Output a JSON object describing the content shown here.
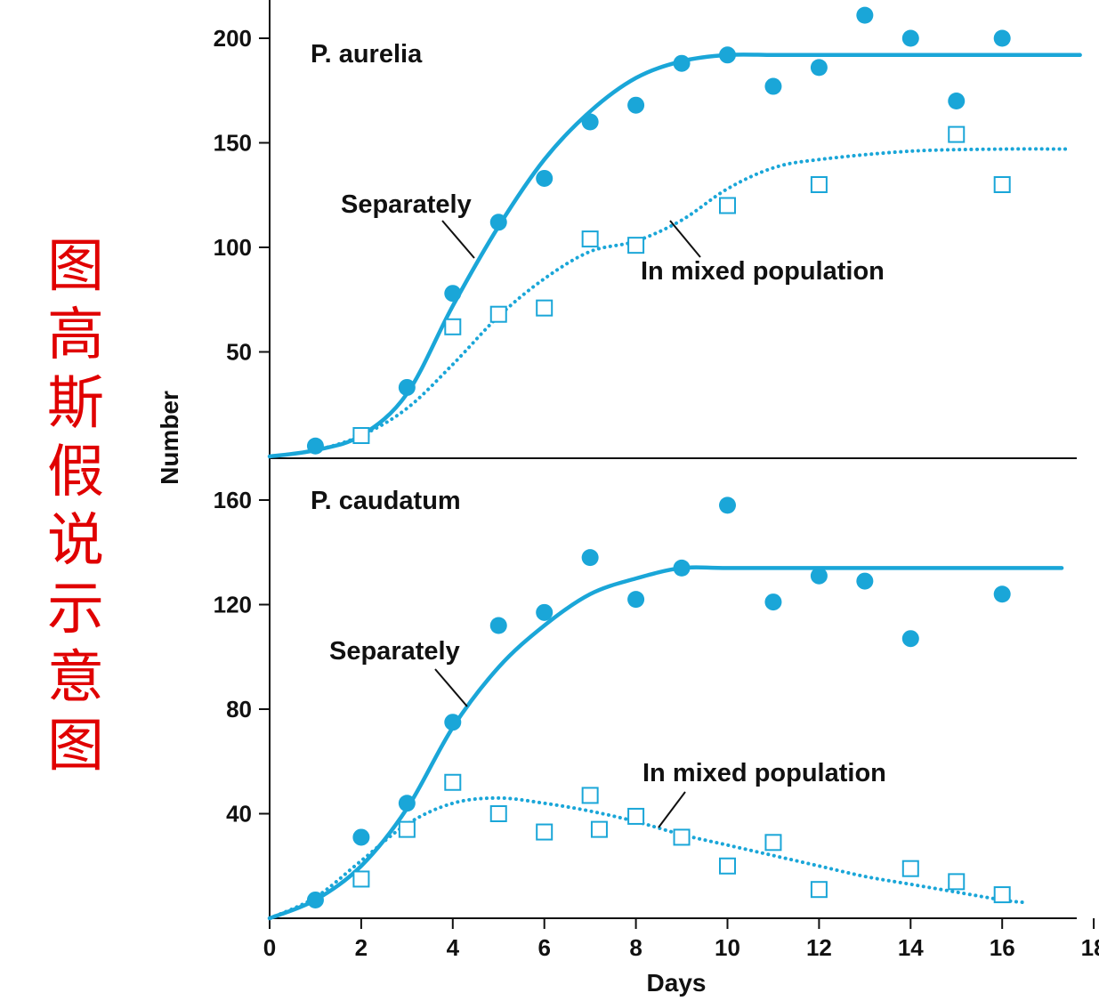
{
  "side_title": {
    "text": "图高斯假说示意图",
    "color": "#e00000"
  },
  "colors": {
    "series": "#1aa6d8",
    "axis": "#111111"
  },
  "chart_data": [
    {
      "type": "line",
      "panel": "top",
      "title": "P. aurelia",
      "xlabel": "Days",
      "ylabel": "Number",
      "xlim": [
        0,
        18
      ],
      "ylim": [
        0,
        200
      ],
      "yticks": [
        "50",
        "100",
        "150",
        "200"
      ],
      "ytick_values": [
        50,
        100,
        150,
        200
      ],
      "xticks": [],
      "grid": false,
      "series": [
        {
          "name": "Separately",
          "style": "solid-line-with-filled-circles",
          "curve": {
            "x": [
              0,
              1,
              2,
              3,
              4,
              5,
              6,
              7,
              8,
              9,
              10,
              11,
              12,
              14,
              16,
              17.7
            ],
            "y": [
              0,
              3,
              10,
              30,
              72,
              110,
              142,
              165,
              181,
              189,
              192,
              192,
              192,
              192,
              192,
              192
            ]
          },
          "points": {
            "x": [
              1,
              2,
              3,
              4,
              5,
              6,
              7,
              8,
              9,
              10,
              11,
              12,
              13,
              14,
              15,
              16
            ],
            "y": [
              5,
              10,
              33,
              78,
              112,
              133,
              160,
              168,
              188,
              192,
              177,
              186,
              211,
              200,
              170,
              200
            ]
          }
        },
        {
          "name": "In mixed population",
          "style": "dotted-line-with-open-squares",
          "curve": {
            "x": [
              0,
              1,
              2,
              3,
              4,
              5,
              6,
              7,
              8,
              9,
              10,
              11,
              12,
              14,
              16,
              17.4
            ],
            "y": [
              0,
              3,
              10,
              23,
              44,
              67,
              85,
              98,
              103,
              113,
              128,
              138,
              142,
              146,
              147,
              147
            ]
          },
          "points": {
            "x": [
              2,
              4,
              5,
              6,
              7,
              8,
              10,
              12,
              15,
              16
            ],
            "y": [
              10,
              62,
              68,
              71,
              104,
              101,
              120,
              130,
              154,
              130
            ]
          }
        }
      ],
      "annotations": [
        {
          "text": "P. aurelia"
        },
        {
          "text": "Separately"
        },
        {
          "text": "In mixed population"
        }
      ]
    },
    {
      "type": "line",
      "panel": "bottom",
      "title": "P. caudatum",
      "xlabel": "Days",
      "ylabel": "Number",
      "xlim": [
        0,
        18
      ],
      "ylim": [
        0,
        160
      ],
      "yticks": [
        "40",
        "80",
        "120",
        "160"
      ],
      "ytick_values": [
        40,
        80,
        120,
        160
      ],
      "xticks": [
        "0",
        "2",
        "4",
        "6",
        "8",
        "10",
        "12",
        "14",
        "16",
        "18"
      ],
      "xtick_values": [
        0,
        2,
        4,
        6,
        8,
        10,
        12,
        14,
        16,
        18
      ],
      "grid": false,
      "series": [
        {
          "name": "Separately",
          "style": "solid-line-with-filled-circles",
          "curve": {
            "x": [
              0,
              1,
              2,
              3,
              4,
              5,
              6,
              7,
              8,
              9,
              10,
              12,
              14,
              16,
              17.3
            ],
            "y": [
              0,
              7,
              20,
              42,
              73,
              96,
              112,
              124,
              130,
              134,
              134,
              134,
              134,
              134,
              134
            ]
          },
          "points": {
            "x": [
              1,
              2,
              3,
              4,
              5,
              6,
              7,
              8,
              9,
              10,
              11,
              12,
              13,
              14,
              16
            ],
            "y": [
              7,
              31,
              44,
              75,
              112,
              117,
              138,
              122,
              134,
              158,
              121,
              131,
              129,
              107,
              124
            ]
          }
        },
        {
          "name": "In mixed population",
          "style": "dotted-line-with-open-squares",
          "curve": {
            "x": [
              0,
              1,
              2,
              3,
              4,
              5,
              6,
              7,
              8,
              9,
              10,
              11,
              12,
              13,
              14,
              15,
              16,
              16.5
            ],
            "y": [
              0,
              8,
              22,
              36,
              44,
              46,
              44,
              41,
              37,
              32,
              28,
              24,
              20,
              16,
              13,
              10,
              7,
              6
            ]
          },
          "points": {
            "x": [
              2,
              3,
              4,
              5,
              6,
              7,
              7.2,
              8,
              9,
              10,
              11,
              12,
              14,
              15,
              16
            ],
            "y": [
              15,
              34,
              52,
              40,
              33,
              47,
              34,
              39,
              31,
              20,
              29,
              11,
              19,
              14,
              9
            ]
          }
        }
      ],
      "annotations": [
        {
          "text": "P. caudatum"
        },
        {
          "text": "Separately"
        },
        {
          "text": "In mixed population"
        }
      ]
    }
  ]
}
